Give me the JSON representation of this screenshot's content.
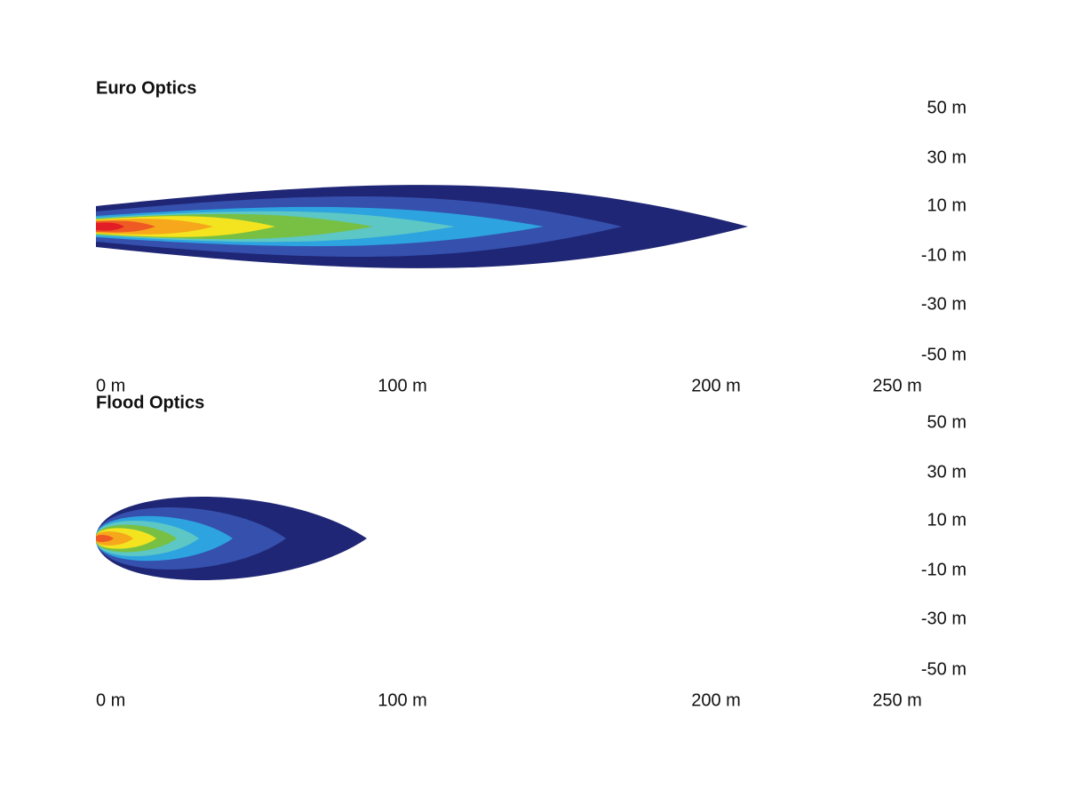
{
  "panels": [
    {
      "title": "Euro Optics",
      "y_labels": [
        "50 m",
        "30 m",
        "10 m",
        "-10 m",
        "-30 m",
        "-50 m"
      ],
      "x_labels": [
        "0 m",
        "100 m",
        "200 m",
        "250 m"
      ]
    },
    {
      "title": "Flood Optics",
      "y_labels": [
        "50 m",
        "30 m",
        "10 m",
        "-10 m",
        "-30 m",
        "-50 m"
      ],
      "x_labels": [
        "0 m",
        "100 m",
        "200 m",
        "250 m"
      ]
    }
  ]
}
